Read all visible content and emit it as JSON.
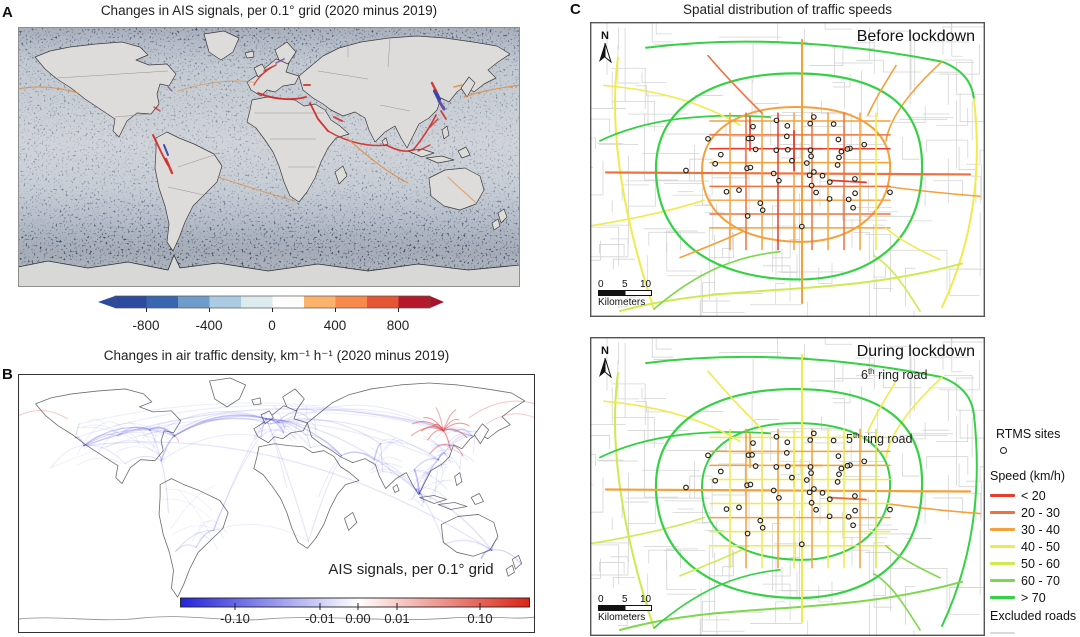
{
  "figure": {
    "panelA": {
      "label": "A",
      "title": "Changes in AIS signals, per 0.1° grid (2020 minus 2019)",
      "colorbar": {
        "ticks": [
          "-800",
          "-400",
          "0",
          "400",
          "800"
        ]
      }
    },
    "panelB": {
      "label": "B",
      "title": "Changes in air traffic density, km⁻¹ h⁻¹ (2020 minus 2019)",
      "map_label": "AIS signals, per 0.1° grid",
      "colorbar": {
        "ticks": [
          "-0.10",
          "-0.01",
          "0.00",
          "0.01",
          "0.10"
        ]
      }
    },
    "panelC": {
      "label": "C",
      "title": "Spatial distribution of traffic speeds",
      "before_caption": "Before lockdown",
      "during_caption": "During lockdown",
      "ring6": {
        "num": "6",
        "sup": "th",
        "rest": " ring road"
      },
      "ring5": {
        "num": "5",
        "sup": "th",
        "rest": " ring road"
      },
      "north": "N",
      "scale": {
        "t0": "0",
        "t5": "5",
        "t10": "10",
        "unit": "Kilometers"
      },
      "legend": {
        "rtms_title": "RTMS sites",
        "speed_title": "Speed (km/h)",
        "items": [
          {
            "label": "< 20",
            "color": "#e63b2d"
          },
          {
            "label": "20 - 30",
            "color": "#f1703e"
          },
          {
            "label": "30 - 40",
            "color": "#f5a03a"
          },
          {
            "label": "40 - 50",
            "color": "#f0ea4b"
          },
          {
            "label": "50 - 60",
            "color": "#cdea4e"
          },
          {
            "label": "60 - 70",
            "color": "#7fd74d"
          },
          {
            "label": "> 70",
            "color": "#35d145"
          }
        ],
        "excluded_label": "Excluded roads",
        "excluded_color": "#d9d9d9"
      }
    },
    "colors": {
      "cbarA_segments": [
        "#2c4b9f",
        "#3a66af",
        "#6f9cca",
        "#abcbe3",
        "#dcebee",
        "#fdfdfc",
        "#fbb26a",
        "#f6894b",
        "#e55634",
        "#b5192b"
      ],
      "cbarA_left_arrow": "#2c4b9f",
      "cbarA_right_arrow": "#a8122a",
      "cbarB_left": "#2323dd",
      "cbarB_mid": "#ffffff",
      "cbarB_right": "#dd2314",
      "ais_route_red": "#cf2b28",
      "ais_route_blue": "#2b3fa8",
      "ais_route_orange": "#e08a3c",
      "air_route_blue": "#2a2ae0",
      "air_route_red": "#e23c36"
    }
  }
}
